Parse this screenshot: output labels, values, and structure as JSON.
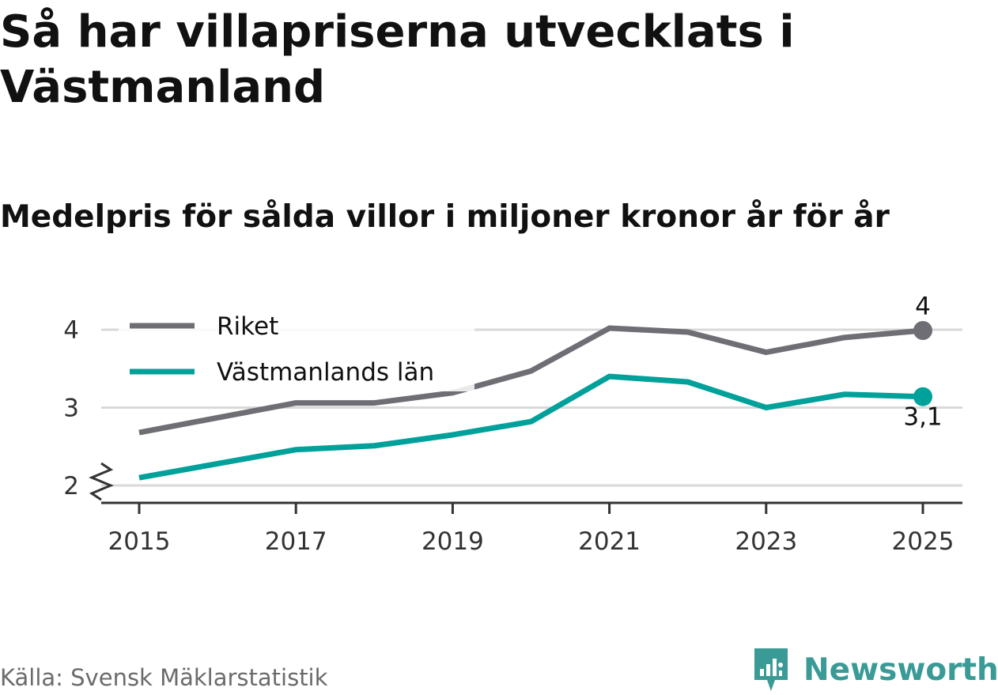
{
  "title": "Så har villapriserna utvecklats i Västmanland",
  "subtitle": "Medelpris för sålda villor i miljoner kronor år för år",
  "source": "Källa: Svensk Mäklarstatistik",
  "brand": "Newsworthy",
  "chart_data": {
    "type": "line",
    "x": [
      2015,
      2016,
      2017,
      2018,
      2019,
      2020,
      2021,
      2022,
      2023,
      2024,
      2025
    ],
    "x_ticks": [
      "2015",
      "2017",
      "2019",
      "2021",
      "2023",
      "2025"
    ],
    "y_ticks": [
      "2",
      "3",
      "4"
    ],
    "ylim": [
      1.8,
      4.2
    ],
    "series": [
      {
        "name": "Riket",
        "color": "#6f6e75",
        "values": [
          2.68,
          2.87,
          3.06,
          3.06,
          3.19,
          3.47,
          4.02,
          3.97,
          3.71,
          3.9,
          3.99
        ],
        "end_label": "4"
      },
      {
        "name": "Västmanlands län",
        "color": "#00a19a",
        "values": [
          2.1,
          2.28,
          2.46,
          2.51,
          2.65,
          2.82,
          3.4,
          3.33,
          3.0,
          3.17,
          3.14
        ],
        "end_label": "3,1"
      }
    ],
    "legend_position": "top-left",
    "axis_break": true,
    "colors": {
      "grid": "#d9d9d9",
      "axis": "#333333",
      "logo": "#3a9a96"
    }
  }
}
